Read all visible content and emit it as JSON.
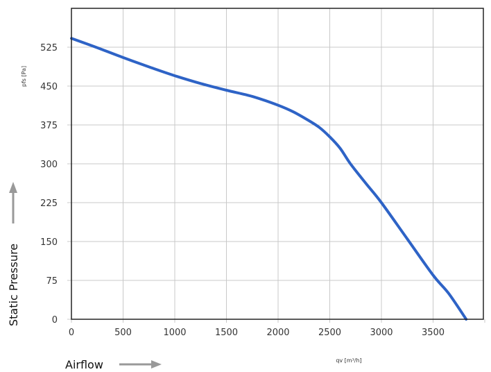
{
  "chart_data": {
    "type": "line",
    "xlabel": "qv [m³/h]",
    "ylabel": "pfs [Pa]",
    "xlim": [
      0,
      4000
    ],
    "ylim": [
      0,
      600
    ],
    "x_ticks": [
      0,
      500,
      1000,
      1500,
      2000,
      2500,
      3000,
      3500
    ],
    "y_ticks": [
      0,
      75,
      150,
      225,
      300,
      375,
      450,
      525
    ],
    "grid": true,
    "series": [
      {
        "color": "#2e63c6",
        "x": [
          0,
          250,
          500,
          750,
          1000,
          1250,
          1500,
          1750,
          2000,
          2150,
          2300,
          2400,
          2500,
          2600,
          2700,
          2850,
          3000,
          3250,
          3500,
          3650,
          3820
        ],
        "y": [
          542,
          524,
          505,
          487,
          470,
          455,
          442,
          430,
          413,
          400,
          383,
          370,
          352,
          330,
          300,
          262,
          225,
          155,
          85,
          50,
          0
        ]
      }
    ],
    "annotations": {
      "y_direction_label": "Static Pressure",
      "x_direction_label": "Airflow"
    },
    "colors": {
      "grid": "#c8c8c8",
      "frame": "#222222",
      "arrow": "#999999"
    }
  }
}
